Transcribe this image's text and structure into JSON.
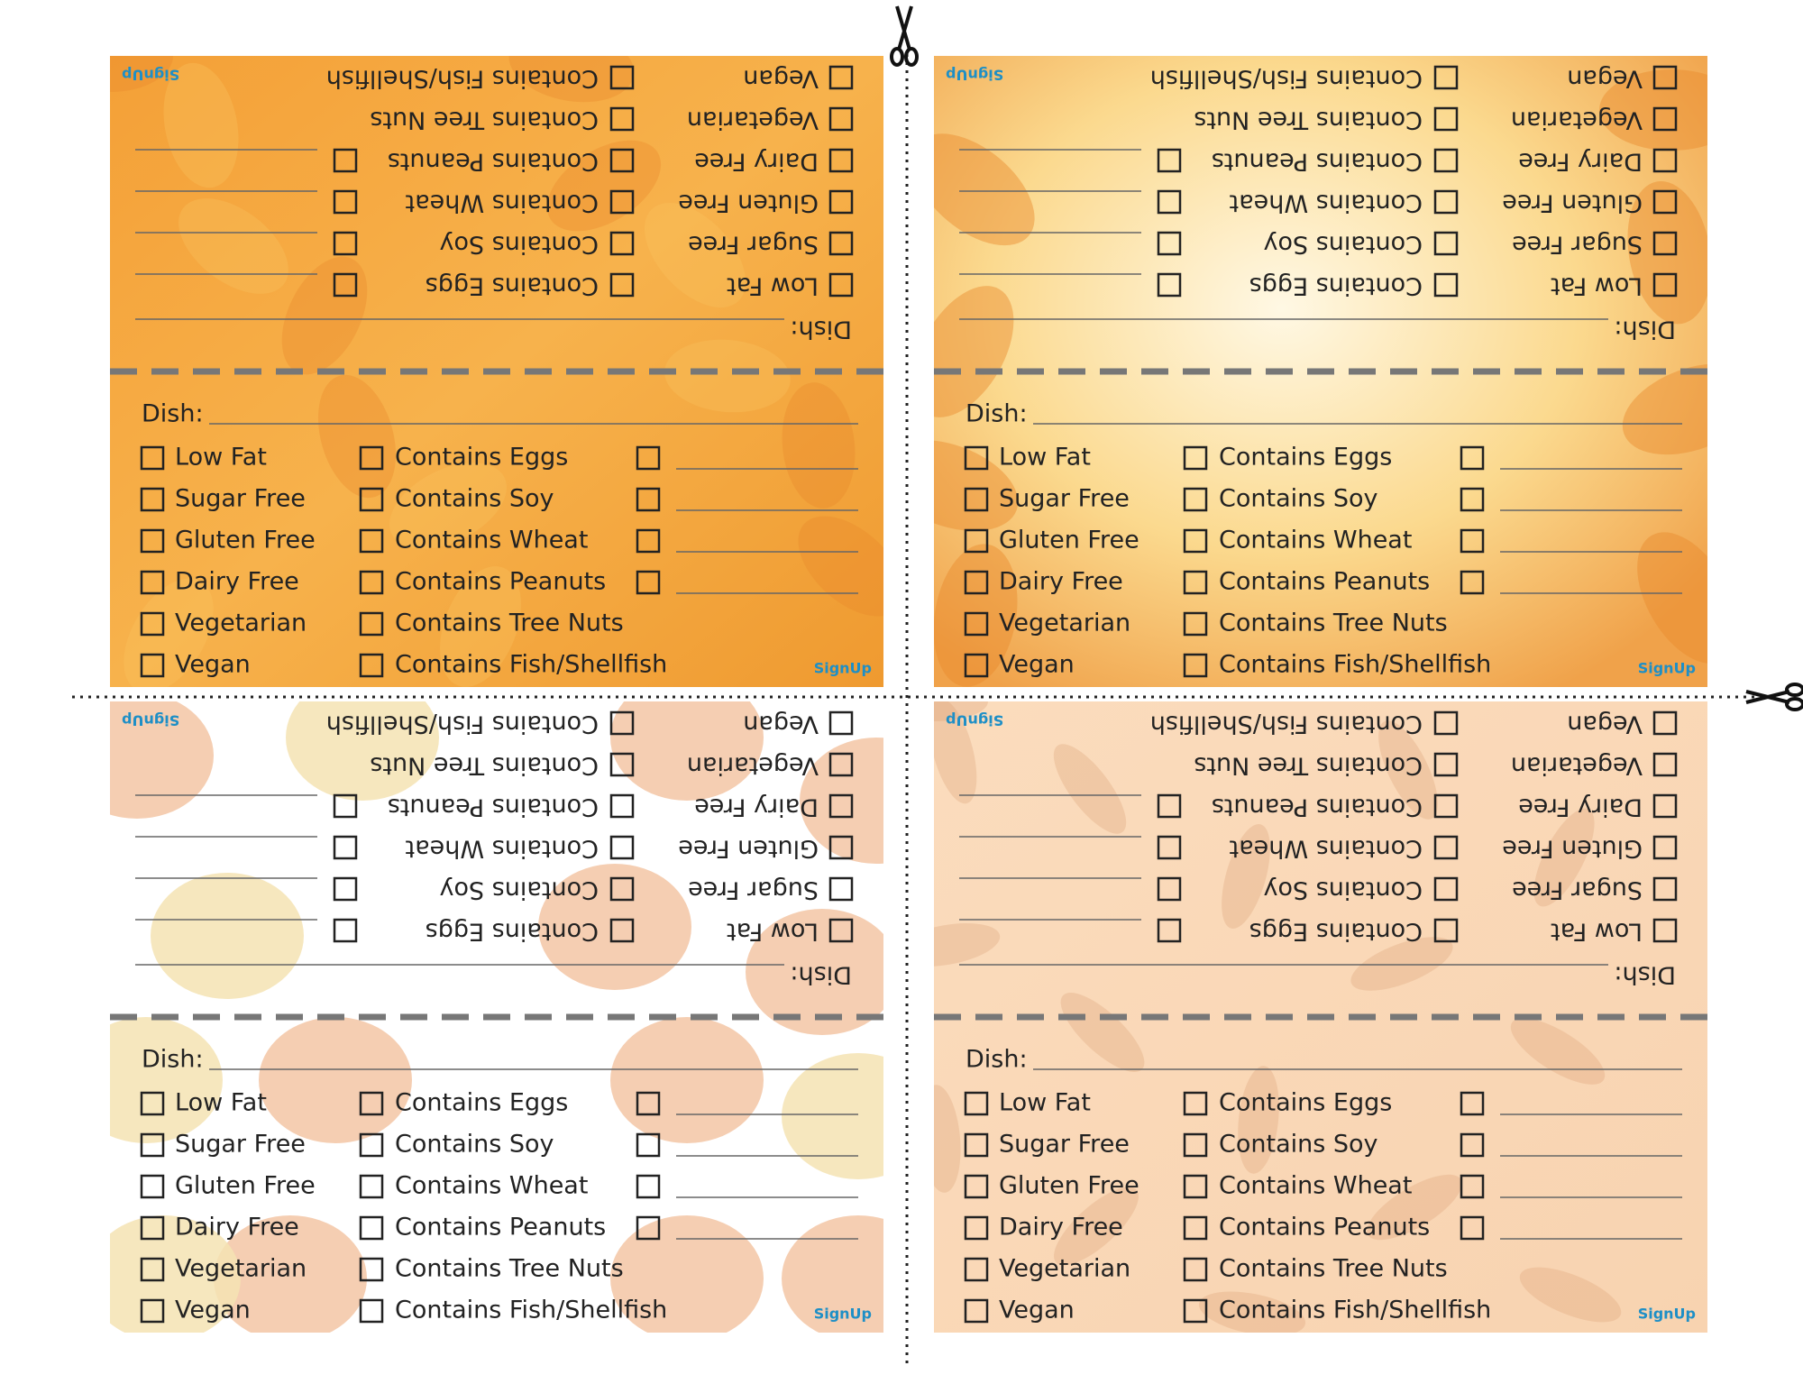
{
  "cards": [
    {
      "dish_label": "Dish:",
      "left_options": [
        "Low Fat",
        "Sugar Free",
        "Gluten Free",
        "Dairy Free",
        "Vegetarian",
        "Vegan"
      ],
      "middle_options": [
        "Contains Eggs",
        "Contains Soy",
        "Contains Wheat",
        "Contains Peanuts",
        "Contains Tree Nuts",
        "Contains Fish/Shellfish"
      ],
      "logo": "SignUp"
    },
    {
      "dish_label": "Dish:",
      "left_options": [
        "Low Fat",
        "Sugar Free",
        "Gluten Free",
        "Dairy Free",
        "Vegetarian",
        "Vegan"
      ],
      "middle_options": [
        "Contains Eggs",
        "Contains Soy",
        "Contains Wheat",
        "Contains Peanuts",
        "Contains Tree Nuts",
        "Contains Fish/Shellfish"
      ],
      "logo": "SignUp"
    },
    {
      "dish_label": "Dish:",
      "left_options": [
        "Low Fat",
        "Sugar Free",
        "Gluten Free",
        "Dairy Free",
        "Vegetarian",
        "Vegan"
      ],
      "middle_options": [
        "Contains Eggs",
        "Contains Soy",
        "Contains Wheat",
        "Contains Peanuts",
        "Contains Tree Nuts",
        "Contains Fish/Shellfish"
      ],
      "logo": "SignUp"
    },
    {
      "dish_label": "Dish:",
      "left_options": [
        "Low Fat",
        "Sugar Free",
        "Gluten Free",
        "Dairy Free",
        "Vegetarian",
        "Vegan"
      ],
      "middle_options": [
        "Contains Eggs",
        "Contains Soy",
        "Contains Wheat",
        "Contains Peanuts",
        "Contains Tree Nuts",
        "Contains Fish/Shellfish"
      ],
      "logo": "SignUp"
    }
  ]
}
